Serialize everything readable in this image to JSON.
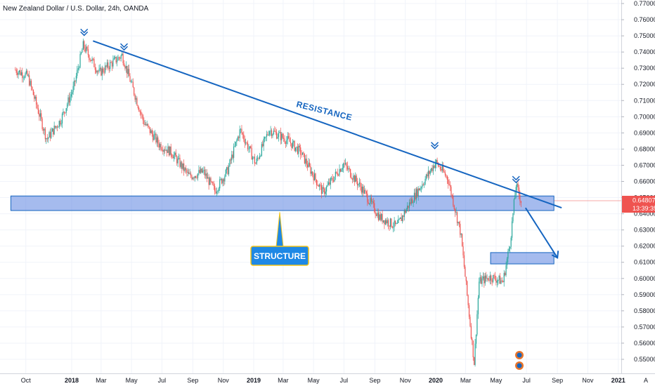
{
  "header": {
    "title": "New Zealand Dollar / U.S. Dollar, 24h, OANDA"
  },
  "colors": {
    "up": "#26a69a",
    "down": "#ef5350",
    "annotation": "#1565c0",
    "zone_fill": "#5b84e0",
    "price_tag": "#ef5350",
    "timer_tag": "#ef5350",
    "callout_fill": "#1e88e5",
    "callout_border": "#f5c518"
  },
  "chart_data": {
    "type": "candlestick",
    "symbol": "New Zealand Dollar / U.S. Dollar, 24h, OANDA",
    "ylim": [
      0.543,
      0.772
    ],
    "y_ticks": [
      "0.77000",
      "0.76000",
      "0.75000",
      "0.74000",
      "0.73000",
      "0.72000",
      "0.71000",
      "0.70000",
      "0.69000",
      "0.68000",
      "0.67000",
      "0.66000",
      "0.65000",
      "0.64000",
      "0.63000",
      "0.62000",
      "0.61000",
      "0.60000",
      "0.59000",
      "0.58000",
      "0.57000",
      "0.56000",
      "0.55000"
    ],
    "x_ticks": [
      "Oct",
      "2018",
      "Mar",
      "May",
      "Jul",
      "Sep",
      "Nov",
      "2019",
      "Mar",
      "May",
      "Jul",
      "Sep",
      "Nov",
      "2020",
      "Mar",
      "May",
      "Jul",
      "Sep",
      "Nov",
      "2021"
    ],
    "price_path": [
      [
        "2017-09-10",
        0.729
      ],
      [
        "2017-10-05",
        0.725
      ],
      [
        "2017-11-12",
        0.686
      ],
      [
        "2017-12-10",
        0.698
      ],
      [
        "2018-01-05",
        0.718
      ],
      [
        "2018-01-24",
        0.744
      ],
      [
        "2018-02-25",
        0.727
      ],
      [
        "2018-04-12",
        0.738
      ],
      [
        "2018-05-25",
        0.697
      ],
      [
        "2018-06-25",
        0.683
      ],
      [
        "2018-07-20",
        0.678
      ],
      [
        "2018-08-25",
        0.663
      ],
      [
        "2018-09-22",
        0.666
      ],
      [
        "2018-10-15",
        0.654
      ],
      [
        "2018-11-10",
        0.667
      ],
      [
        "2018-12-05",
        0.692
      ],
      [
        "2019-01-05",
        0.671
      ],
      [
        "2019-02-01",
        0.692
      ],
      [
        "2019-03-12",
        0.685
      ],
      [
        "2019-04-05",
        0.678
      ],
      [
        "2019-05-20",
        0.653
      ],
      [
        "2019-06-30",
        0.671
      ],
      [
        "2019-08-05",
        0.656
      ],
      [
        "2019-09-10",
        0.638
      ],
      [
        "2019-10-15",
        0.632
      ],
      [
        "2019-11-05",
        0.644
      ],
      [
        "2019-12-12",
        0.662
      ],
      [
        "2020-01-01",
        0.672
      ],
      [
        "2020-01-25",
        0.662
      ],
      [
        "2020-02-20",
        0.628
      ],
      [
        "2020-03-18",
        0.548
      ],
      [
        "2020-03-28",
        0.598
      ],
      [
        "2020-04-20",
        0.601
      ],
      [
        "2020-05-15",
        0.598
      ],
      [
        "2020-05-29",
        0.622
      ],
      [
        "2020-06-10",
        0.658
      ],
      [
        "2020-06-20",
        0.648
      ]
    ],
    "annotations": {
      "resistance_label": "RESISTANCE",
      "structure_label": "STRUCTURE",
      "resistance_line": {
        "from": [
          "2018-01-24",
          0.746
        ],
        "to": [
          "2020-09-01",
          0.645
        ]
      },
      "structure_zone": {
        "start": "2017-09-01",
        "end": "2020-08-25",
        "y_low": 0.642,
        "y_high": 0.651
      },
      "target_zone": {
        "start": "2020-04-20",
        "end": "2020-08-25",
        "y_low": 0.609,
        "y_high": 0.616
      },
      "projection_arrow": {
        "from": [
          "2020-06-15",
          0.648
        ],
        "to": [
          "2020-08-25",
          0.618
        ]
      },
      "top_markers": [
        [
          "2018-01-26",
          0.749
        ],
        [
          "2018-04-16",
          0.74
        ],
        [
          "2019-12-30",
          0.679
        ],
        [
          "2020-06-10",
          0.658
        ]
      ],
      "last_price_line": 0.64807
    },
    "last_price": "0.64807",
    "countdown": "13:39:35",
    "axis_corner_label": "A"
  }
}
